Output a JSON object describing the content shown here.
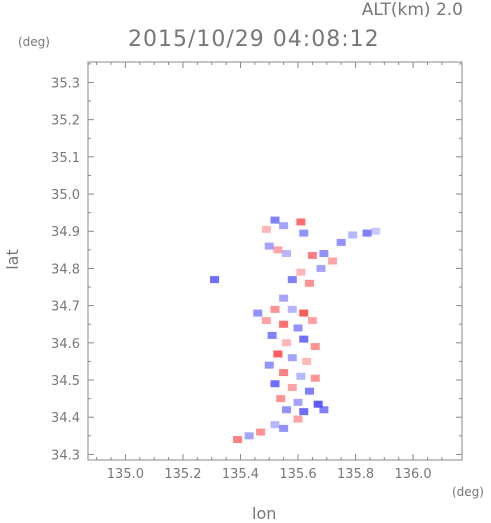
{
  "header": {
    "altitude": "ALT(km) 2.0",
    "timestamp": "2015/10/29 04:08:12"
  },
  "axes": {
    "x_unit": "(deg)",
    "y_unit": "(deg)",
    "x_title": "lon",
    "y_title": "lat"
  },
  "colors": {
    "frame": "#888888",
    "text": "#777777",
    "positive": "#ff4a4a",
    "negative": "#4a4aff"
  },
  "chart_data": {
    "type": "heatmap",
    "xlabel": "lon",
    "ylabel": "lat",
    "xlim": [
      134.87,
      136.17
    ],
    "ylim": [
      34.285,
      35.355
    ],
    "x_ticks": [
      {
        "value": 135.0,
        "label": "135.0"
      },
      {
        "value": 135.2,
        "label": "135.2"
      },
      {
        "value": 135.4,
        "label": "135.4"
      },
      {
        "value": 135.6,
        "label": "135.6"
      },
      {
        "value": 135.8,
        "label": "135.8"
      },
      {
        "value": 136.0,
        "label": "136.0"
      }
    ],
    "y_ticks": [
      {
        "value": 34.3,
        "label": "34.3"
      },
      {
        "value": 34.4,
        "label": "34.4"
      },
      {
        "value": 34.5,
        "label": "34.5"
      },
      {
        "value": 34.6,
        "label": "34.6"
      },
      {
        "value": 34.7,
        "label": "34.7"
      },
      {
        "value": 34.8,
        "label": "34.8"
      },
      {
        "value": 34.9,
        "label": "34.9"
      },
      {
        "value": 35.0,
        "label": "35.0"
      },
      {
        "value": 35.1,
        "label": "35.1"
      },
      {
        "value": 35.2,
        "label": "35.2"
      },
      {
        "value": 35.3,
        "label": "35.3"
      }
    ],
    "cells": [
      {
        "lon": 135.52,
        "lat": 34.93,
        "v": -0.7
      },
      {
        "lon": 135.55,
        "lat": 34.915,
        "v": -0.5
      },
      {
        "lon": 135.49,
        "lat": 34.905,
        "v": 0.4
      },
      {
        "lon": 135.61,
        "lat": 34.925,
        "v": 0.8
      },
      {
        "lon": 135.62,
        "lat": 34.895,
        "v": -0.6
      },
      {
        "lon": 135.75,
        "lat": 34.87,
        "v": -0.6
      },
      {
        "lon": 135.79,
        "lat": 34.89,
        "v": -0.4
      },
      {
        "lon": 135.84,
        "lat": 34.895,
        "v": -0.7
      },
      {
        "lon": 135.87,
        "lat": 34.9,
        "v": -0.3
      },
      {
        "lon": 135.5,
        "lat": 34.86,
        "v": -0.5
      },
      {
        "lon": 135.53,
        "lat": 34.85,
        "v": 0.5
      },
      {
        "lon": 135.56,
        "lat": 34.84,
        "v": -0.4
      },
      {
        "lon": 135.65,
        "lat": 34.835,
        "v": 0.7
      },
      {
        "lon": 135.69,
        "lat": 34.84,
        "v": -0.6
      },
      {
        "lon": 135.72,
        "lat": 34.82,
        "v": 0.5
      },
      {
        "lon": 135.68,
        "lat": 34.8,
        "v": -0.5
      },
      {
        "lon": 135.61,
        "lat": 34.79,
        "v": 0.4
      },
      {
        "lon": 135.58,
        "lat": 34.77,
        "v": -0.7
      },
      {
        "lon": 135.64,
        "lat": 34.76,
        "v": 0.6
      },
      {
        "lon": 135.31,
        "lat": 34.77,
        "v": -0.8
      },
      {
        "lon": 135.55,
        "lat": 34.72,
        "v": -0.5
      },
      {
        "lon": 135.52,
        "lat": 34.69,
        "v": 0.6
      },
      {
        "lon": 135.58,
        "lat": 34.69,
        "v": -0.4
      },
      {
        "lon": 135.62,
        "lat": 34.68,
        "v": 0.9
      },
      {
        "lon": 135.46,
        "lat": 34.68,
        "v": -0.6
      },
      {
        "lon": 135.49,
        "lat": 34.66,
        "v": 0.5
      },
      {
        "lon": 135.55,
        "lat": 34.65,
        "v": 0.8
      },
      {
        "lon": 135.6,
        "lat": 34.64,
        "v": -0.6
      },
      {
        "lon": 135.65,
        "lat": 34.66,
        "v": 0.5
      },
      {
        "lon": 135.51,
        "lat": 34.62,
        "v": -0.7
      },
      {
        "lon": 135.56,
        "lat": 34.6,
        "v": 0.4
      },
      {
        "lon": 135.62,
        "lat": 34.61,
        "v": -0.8
      },
      {
        "lon": 135.66,
        "lat": 34.59,
        "v": 0.6
      },
      {
        "lon": 135.53,
        "lat": 34.57,
        "v": 0.9
      },
      {
        "lon": 135.58,
        "lat": 34.56,
        "v": -0.5
      },
      {
        "lon": 135.63,
        "lat": 34.55,
        "v": 0.4
      },
      {
        "lon": 135.5,
        "lat": 34.54,
        "v": -0.6
      },
      {
        "lon": 135.55,
        "lat": 34.52,
        "v": 0.7
      },
      {
        "lon": 135.61,
        "lat": 34.51,
        "v": -0.4
      },
      {
        "lon": 135.66,
        "lat": 34.505,
        "v": 0.6
      },
      {
        "lon": 135.52,
        "lat": 34.49,
        "v": -0.8
      },
      {
        "lon": 135.58,
        "lat": 34.48,
        "v": 0.5
      },
      {
        "lon": 135.64,
        "lat": 34.47,
        "v": -0.7
      },
      {
        "lon": 135.54,
        "lat": 34.45,
        "v": 0.6
      },
      {
        "lon": 135.6,
        "lat": 34.44,
        "v": -0.5
      },
      {
        "lon": 135.67,
        "lat": 34.435,
        "v": -0.9
      },
      {
        "lon": 135.56,
        "lat": 34.42,
        "v": -0.6
      },
      {
        "lon": 135.62,
        "lat": 34.415,
        "v": -0.8
      },
      {
        "lon": 135.69,
        "lat": 34.42,
        "v": -0.7
      },
      {
        "lon": 135.6,
        "lat": 34.395,
        "v": 0.5
      },
      {
        "lon": 135.52,
        "lat": 34.38,
        "v": -0.4
      },
      {
        "lon": 135.47,
        "lat": 34.36,
        "v": 0.6
      },
      {
        "lon": 135.43,
        "lat": 34.35,
        "v": -0.5
      },
      {
        "lon": 135.39,
        "lat": 34.34,
        "v": 0.7
      },
      {
        "lon": 135.55,
        "lat": 34.37,
        "v": -0.6
      }
    ]
  }
}
